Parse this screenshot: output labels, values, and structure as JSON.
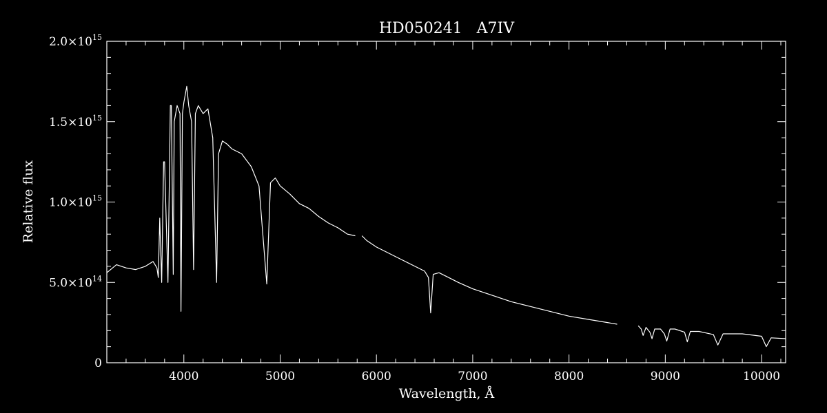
{
  "chart_data": {
    "type": "line",
    "title": "HD050241   A7IV",
    "xlabel": "Wavelength, Å",
    "ylabel": "Relative flux",
    "xlim": [
      3200,
      10250
    ],
    "ylim": [
      0,
      2000000000000000.0
    ],
    "x_ticks": [
      {
        "value": 4000,
        "label": "4000"
      },
      {
        "value": 5000,
        "label": "5000"
      },
      {
        "value": 6000,
        "label": "6000"
      },
      {
        "value": 7000,
        "label": "7000"
      },
      {
        "value": 8000,
        "label": "8000"
      },
      {
        "value": 9000,
        "label": "9000"
      },
      {
        "value": 10000,
        "label": "10000"
      }
    ],
    "y_ticks": [
      {
        "value": 0,
        "mantissa": "0",
        "exponent": ""
      },
      {
        "value": 500000000000000.0,
        "mantissa": "5.0×10",
        "exponent": "14"
      },
      {
        "value": 1000000000000000.0,
        "mantissa": "1.0×10",
        "exponent": "15"
      },
      {
        "value": 1500000000000000.0,
        "mantissa": "1.5×10",
        "exponent": "15"
      },
      {
        "value": 2000000000000000.0,
        "mantissa": "2.0×10",
        "exponent": "15"
      }
    ],
    "series": [
      {
        "segments": [
          {
            "x": [
              3200,
              3300,
              3400,
              3500,
              3600,
              3680,
              3720,
              3735,
              3750,
              3770,
              3790,
              3800,
              3835,
              3860,
              3870,
              3890,
              3900,
              3930,
              3960,
              3970,
              3985,
              4000,
              4030,
              4050,
              4080,
              4101,
              4120,
              4150,
              4200,
              4250,
              4300,
              4340,
              4360,
              4400,
              4450,
              4500,
              4600,
              4700,
              4780,
              4861,
              4900,
              4950,
              5000,
              5100,
              5200,
              5300,
              5400,
              5500,
              5600,
              5700,
              5780
            ],
            "y": [
              560000000000000.0,
              610000000000000.0,
              590000000000000.0,
              580000000000000.0,
              600000000000000.0,
              630000000000000.0,
              590000000000000.0,
              530000000000000.0,
              900000000000000.0,
              500000000000000.0,
              1250000000000000.0,
              1250000000000000.0,
              500000000000000.0,
              1600000000000000.0,
              1600000000000000.0,
              550000000000000.0,
              1500000000000000.0,
              1600000000000000.0,
              1550000000000000.0,
              320000000000000.0,
              1550000000000000.0,
              1620000000000000.0,
              1720000000000000.0,
              1600000000000000.0,
              1500000000000000.0,
              580000000000000.0,
              1550000000000000.0,
              1600000000000000.0,
              1550000000000000.0,
              1580000000000000.0,
              1400000000000000.0,
              500000000000000.0,
              1300000000000000.0,
              1380000000000000.0,
              1360000000000000.0,
              1330000000000000.0,
              1300000000000000.0,
              1220000000000000.0,
              1100000000000000.0,
              490000000000000.0,
              1120000000000000.0,
              1150000000000000.0,
              1100000000000000.0,
              1050000000000000.0,
              990000000000000.0,
              960000000000000.0,
              910000000000000.0,
              870000000000000.0,
              840000000000000.0,
              800000000000000.0,
              790000000000000.0
            ]
          },
          {
            "x": [
              5850,
              5900,
              6000,
              6100,
              6200,
              6300,
              6400,
              6500,
              6540,
              6563,
              6590,
              6650,
              6750,
              6850,
              7000,
              7200,
              7400,
              7600,
              7800,
              8000,
              8200,
              8400,
              8500
            ],
            "y": [
              790000000000000.0,
              760000000000000.0,
              720000000000000.0,
              690000000000000.0,
              660000000000000.0,
              630000000000000.0,
              600000000000000.0,
              570000000000000.0,
              530000000000000.0,
              310000000000000.0,
              550000000000000.0,
              560000000000000.0,
              530000000000000.0,
              500000000000000.0,
              460000000000000.0,
              420000000000000.0,
              380000000000000.0,
              350000000000000.0,
              320000000000000.0,
              290000000000000.0,
              270000000000000.0,
              250000000000000.0,
              240000000000000.0
            ]
          },
          {
            "x": [
              8720,
              8750,
              8770,
              8800,
              8840,
              8862,
              8890,
              8950,
              8990,
              9015,
              9050,
              9100,
              9200,
              9229,
              9260,
              9350,
              9500,
              9546,
              9600,
              9800,
              10000,
              10049,
              10100,
              10250
            ],
            "y": [
              230000000000000.0,
              210000000000000.0,
              170000000000000.0,
              220000000000000.0,
              190000000000000.0,
              150000000000000.0,
              210000000000000.0,
              210000000000000.0,
              180000000000000.0,
              135000000000000.0,
              210000000000000.0,
              210000000000000.0,
              190000000000000.0,
              130000000000000.0,
              195000000000000.0,
              195000000000000.0,
              175000000000000.0,
              110000000000000.0,
              180000000000000.0,
              180000000000000.0,
              165000000000000.0,
              100000000000000.0,
              155000000000000.0,
              150000000000000.0
            ]
          }
        ]
      }
    ],
    "grid": false,
    "legend": "none"
  }
}
